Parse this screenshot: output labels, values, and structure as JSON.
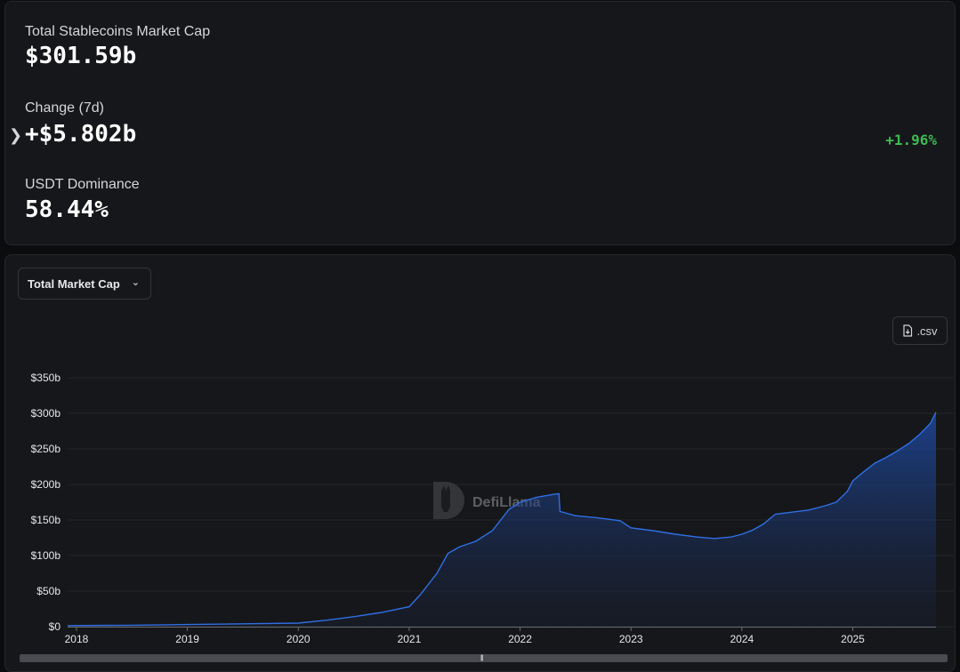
{
  "summary": {
    "market_cap_label": "Total Stablecoins Market Cap",
    "market_cap_value": "$301.59b",
    "change_label": "Change (7d)",
    "change_value": "+$5.802b",
    "change_percent": "+1.96%",
    "dominance_label": "USDT Dominance",
    "dominance_value": "58.44%"
  },
  "controls": {
    "dropdown_label": "Total Market Cap",
    "csv_label": ".csv"
  },
  "watermark": "DefiLlama",
  "colors": {
    "background": "#16171a",
    "line": "#2f6fe4",
    "positive": "#3fb950"
  },
  "chart_data": {
    "type": "area",
    "title": "",
    "xlabel": "",
    "ylabel": "",
    "ylim": [
      0,
      350
    ],
    "y_ticks": [
      "$0",
      "$50b",
      "$100b",
      "$150b",
      "$200b",
      "$250b",
      "$300b",
      "$350b"
    ],
    "y_tick_values": [
      0,
      50,
      100,
      150,
      200,
      250,
      300,
      350
    ],
    "x_ticks": [
      "2018",
      "2019",
      "2020",
      "2021",
      "2022",
      "2023",
      "2024",
      "2025"
    ],
    "x_tick_values": [
      2018,
      2019,
      2020,
      2021,
      2022,
      2023,
      2024,
      2025
    ],
    "grid": true,
    "series": [
      {
        "unit": "$b",
        "x": [
          2017.92,
          2018.5,
          2019.0,
          2019.5,
          2020.0,
          2020.25,
          2020.5,
          2020.75,
          2021.0,
          2021.1,
          2021.25,
          2021.35,
          2021.45,
          2021.6,
          2021.75,
          2021.9,
          2022.0,
          2022.15,
          2022.3,
          2022.35,
          2022.36,
          2022.5,
          2022.7,
          2022.9,
          2023.0,
          2023.2,
          2023.4,
          2023.6,
          2023.75,
          2023.9,
          2024.0,
          2024.1,
          2024.2,
          2024.3,
          2024.45,
          2024.6,
          2024.75,
          2024.85,
          2024.95,
          2025.0,
          2025.1,
          2025.2,
          2025.3,
          2025.4,
          2025.5,
          2025.6,
          2025.7,
          2025.75
        ],
        "values": [
          1.5,
          2,
          3,
          4,
          5,
          9,
          14,
          20,
          28,
          45,
          75,
          103,
          112,
          120,
          135,
          165,
          175,
          182,
          186,
          187,
          162,
          156,
          153,
          149,
          139,
          135,
          130,
          126,
          124,
          126,
          130,
          136,
          145,
          158,
          161,
          164,
          170,
          175,
          190,
          205,
          218,
          230,
          238,
          247,
          257,
          270,
          286,
          301.59
        ]
      }
    ]
  }
}
